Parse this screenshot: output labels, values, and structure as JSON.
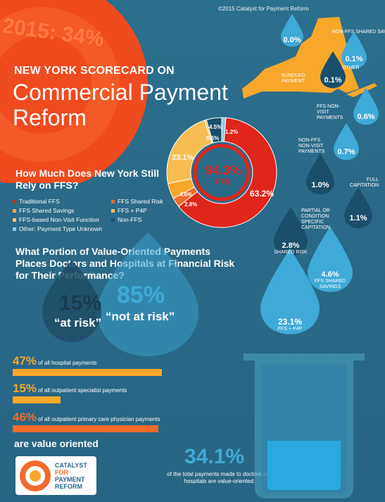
{
  "copyright": "©2015 Catalyst for Payment Reform",
  "year_banner": "2015: 34%",
  "title_small": "NEW YORK SCORECARD ON",
  "title_big": "Commercial Payment Reform",
  "q1": "How Much Does New York Still Rely on FFS?",
  "legend": [
    {
      "label": "Traditional FFS",
      "color": "#e0251b"
    },
    {
      "label": "FFS Shared Risk",
      "color": "#f26a2b"
    },
    {
      "label": "FFS Shared Savings",
      "color": "#f7a82a"
    },
    {
      "label": "FFS + P4P",
      "color": "#f7bd52"
    },
    {
      "label": "FFS-based Non-Visit Function",
      "color": "#f9c96a"
    },
    {
      "label": "Non-FFS",
      "color": "#1a4f6c"
    },
    {
      "label": "Other: Payment Type Unknown",
      "color": "#8ecae8"
    }
  ],
  "donut": {
    "center_value": "94.3%",
    "center_label": "FFS",
    "labels": {
      "traditional": "63.2%",
      "p4p": "23.1%",
      "savings": "4.6%",
      "risk": "2.8%",
      "nonvisit": "0.6%",
      "nonffs": "4.5%",
      "other": "1.2%"
    }
  },
  "chart_data": {
    "type": "pie",
    "categories": [
      "Traditional FFS",
      "FFS + P4P",
      "FFS Shared Savings",
      "FFS Shared Risk",
      "FFS-based Non-Visit Function",
      "Non-FFS",
      "Other: Payment Type Unknown"
    ],
    "values": [
      63.2,
      23.1,
      4.6,
      2.8,
      0.6,
      4.5,
      1.2
    ],
    "colors": [
      "#e0251b",
      "#f7bd52",
      "#f7a82a",
      "#f26a2b",
      "#f9c96a",
      "#1a4f6c",
      "#8ecae8"
    ]
  },
  "q2": "What Portion of Value-Oriented Payments Places Doctors and Hospitals at Financial Risk for Their Performance?",
  "at_risk_value": "15%",
  "at_risk_label": "“at risk”",
  "not_at_risk_value": "85%",
  "not_at_risk_label": "“not at risk”",
  "bars": [
    {
      "value": "47%",
      "text": "of all hospital payments",
      "color": "#f7a82a",
      "fraction": 0.47
    },
    {
      "value": "15%",
      "text": "of all outpatient specialist payments",
      "color": "#f7a82a",
      "fraction": 0.15
    },
    {
      "value": "46%",
      "text": "of all outpatient primary care physician payments",
      "color": "#f26a2b",
      "fraction": 0.46
    }
  ],
  "value_oriented": "are value oriented",
  "total_value": "34.1%",
  "total_text": "of the total payments made to doctors and hospitals are value-oriented.",
  "logo_text": [
    "CATALYST",
    "FOR",
    "PAYMENT",
    "REFORM"
  ],
  "breakdown": {
    "nonffs_shared_savings": {
      "value": "0.0%",
      "label": "NON-FFS SHARED SAVINGS"
    },
    "other": {
      "value": "0.1%",
      "label": "OTHER"
    },
    "bundled": {
      "value": "0.1%",
      "label": "BUNDLED PAYMENT"
    },
    "ffs_nonvisit": {
      "value": "0.6%",
      "label": "FFS NON-VISIT PAYMENTS"
    },
    "nonffs_nonvisit": {
      "value": "0.7%",
      "label": "NON-FFS NON-VISIT PAYMENTS"
    },
    "full_cap": {
      "value": "1.0%",
      "label": "FULL CAPITATION"
    },
    "partial_cap": {
      "value": "1.1%",
      "label": "PARTIAL OR CONDITION SPECIFIC CAPITATION"
    },
    "shared_risk": {
      "value": "2.8%",
      "label": "SHARED RISK"
    },
    "ffs_shared_savings": {
      "value": "4.6%",
      "label": "FFS SHARED SAVINGS"
    },
    "ffs_p4p": {
      "value": "23.1%",
      "label": "FFS + P4P"
    }
  }
}
